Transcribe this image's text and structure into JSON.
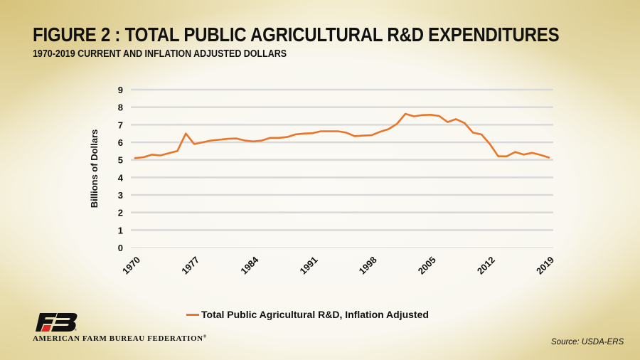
{
  "title": "FIGURE  2 : TOTAL PUBLIC AGRICULTURAL R&D EXPENDITURES",
  "subtitle": "1970-2019 CURRENT AND INFLATION ADJUSTED DOLLARS",
  "organization": "AMERICAN FARM BUREAU FEDERATION",
  "organization_mark": "®",
  "logo_icon": "afbf-fb-logo",
  "source": "Source: USDA-ERS",
  "colors": {
    "line": "#e8762a",
    "grid": "#d9d9d9",
    "logo_red": "#e0262b",
    "logo_black": "#111111"
  },
  "chart_data": {
    "type": "line",
    "title": "FIGURE 2 : TOTAL PUBLIC AGRICULTURAL R&D EXPENDITURES",
    "subtitle": "1970-2019 CURRENT AND INFLATION ADJUSTED DOLLARS",
    "xlabel": "",
    "ylabel": "Billions of Dollars",
    "xlim": [
      1970,
      2019
    ],
    "ylim": [
      0,
      9
    ],
    "yticks": [
      0,
      1,
      2,
      3,
      4,
      5,
      6,
      7,
      8,
      9
    ],
    "xticks": [
      "1970",
      "1977",
      "1984",
      "1991",
      "1998",
      "2005",
      "2012",
      "2019"
    ],
    "grid": "horizontal",
    "legend_position": "bottom-center",
    "x": [
      1970,
      1971,
      1972,
      1973,
      1974,
      1975,
      1976,
      1977,
      1978,
      1979,
      1980,
      1981,
      1982,
      1983,
      1984,
      1985,
      1986,
      1987,
      1988,
      1989,
      1990,
      1991,
      1992,
      1993,
      1994,
      1995,
      1996,
      1997,
      1998,
      1999,
      2000,
      2001,
      2002,
      2003,
      2004,
      2005,
      2006,
      2007,
      2008,
      2009,
      2010,
      2011,
      2012,
      2013,
      2014,
      2015,
      2016,
      2017,
      2018,
      2019
    ],
    "series": [
      {
        "name": "Total Public Agricultural R&D, Inflation Adjusted",
        "values": [
          5.1,
          5.15,
          5.3,
          5.25,
          5.38,
          5.5,
          6.5,
          5.9,
          6.0,
          6.1,
          6.15,
          6.2,
          6.22,
          6.1,
          6.05,
          6.1,
          6.25,
          6.25,
          6.3,
          6.45,
          6.5,
          6.52,
          6.63,
          6.63,
          6.63,
          6.55,
          6.35,
          6.38,
          6.4,
          6.6,
          6.75,
          7.05,
          7.62,
          7.48,
          7.55,
          7.57,
          7.5,
          7.15,
          7.32,
          7.1,
          6.55,
          6.45,
          5.9,
          5.2,
          5.2,
          5.45,
          5.3,
          5.4,
          5.28,
          5.13
        ]
      }
    ]
  }
}
